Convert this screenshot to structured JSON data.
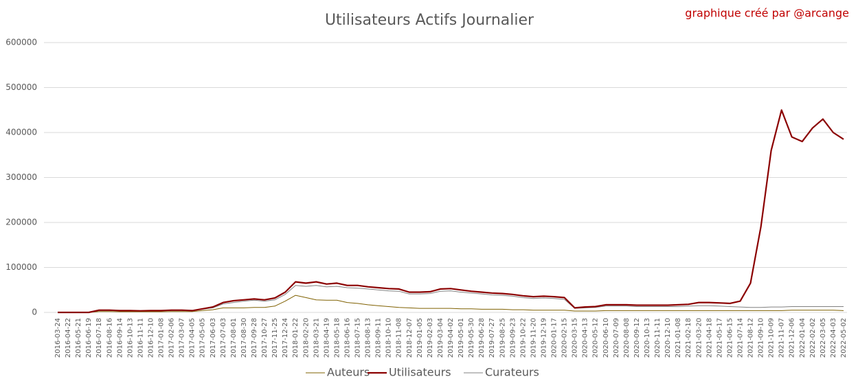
{
  "chart_data": {
    "type": "line",
    "title": "Utilisateurs Actifs Journalier",
    "annotation": "graphique créé par @arcange",
    "categories": [
      "2016-03-24",
      "2016-04-22",
      "2016-05-21",
      "2016-06-19",
      "2016-07-18",
      "2016-08-16",
      "2016-09-14",
      "2016-10-13",
      "2016-11-11",
      "2016-12-10",
      "2017-01-08",
      "2017-02-06",
      "2017-03-07",
      "2017-04-05",
      "2017-05-05",
      "2017-06-03",
      "2017-07-03",
      "2017-08-01",
      "2017-08-30",
      "2017-09-28",
      "2017-10-27",
      "2017-11-25",
      "2017-12-24",
      "2018-01-22",
      "2018-02-20",
      "2018-03-21",
      "2018-04-19",
      "2018-05-18",
      "2018-06-16",
      "2018-07-15",
      "2018-08-13",
      "2018-09-11",
      "2018-10-10",
      "2018-11-08",
      "2018-12-07",
      "2019-01-05",
      "2019-02-03",
      "2019-03-04",
      "2019-04-02",
      "2019-05-01",
      "2019-05-30",
      "2019-06-28",
      "2019-07-27",
      "2019-08-25",
      "2019-09-23",
      "2019-10-22",
      "2019-11-20",
      "2019-12-19",
      "2020-01-17",
      "2020-02-15",
      "2020-03-15",
      "2020-04-13",
      "2020-05-12",
      "2020-06-10",
      "2020-07-09",
      "2020-08-08",
      "2020-09-12",
      "2020-10-13",
      "2020-11-11",
      "2020-12-10",
      "2021-01-08",
      "2021-02-18",
      "2021-03-20",
      "2021-04-18",
      "2021-05-17",
      "2021-06-15",
      "2021-07-14",
      "2021-08-12",
      "2021-09-10",
      "2021-10-09",
      "2021-11-07",
      "2021-12-06",
      "2022-01-04",
      "2022-02-02",
      "2022-03-05",
      "2022-04-03",
      "2022-05-02"
    ],
    "series": [
      {
        "name": "Auteurs",
        "color": "#7f6000",
        "width": 1,
        "values": [
          0,
          0,
          0,
          0,
          2000,
          2000,
          1500,
          1500,
          1500,
          1500,
          1500,
          2000,
          2000,
          2000,
          4000,
          6000,
          10000,
          10000,
          10000,
          11000,
          11000,
          14000,
          25000,
          38000,
          33000,
          28000,
          27000,
          27000,
          22000,
          20000,
          17000,
          15000,
          13000,
          11000,
          10000,
          9000,
          9000,
          9000,
          9000,
          8000,
          8000,
          7000,
          7000,
          7000,
          6000,
          6000,
          5000,
          5000,
          5000,
          5000,
          3000,
          3000,
          3000,
          4000,
          4000,
          4000,
          4000,
          4000,
          4000,
          4000,
          4000,
          4000,
          4000,
          4000,
          4000,
          4000,
          4000,
          4000,
          4000,
          4000,
          4000,
          5000,
          5000,
          5000,
          5000,
          5000,
          4000
        ]
      },
      {
        "name": "Utilisateurs",
        "color": "#8b0000",
        "width": 2.2,
        "values": [
          0,
          0,
          0,
          0,
          5000,
          5000,
          4000,
          4000,
          3500,
          4000,
          4000,
          5000,
          5000,
          4000,
          8000,
          12000,
          22000,
          26000,
          28000,
          30000,
          28000,
          32000,
          45000,
          68000,
          65000,
          68000,
          63000,
          65000,
          60000,
          60000,
          57000,
          55000,
          53000,
          52000,
          45000,
          45000,
          46000,
          52000,
          53000,
          50000,
          47000,
          45000,
          43000,
          42000,
          40000,
          37000,
          35000,
          36000,
          35000,
          33000,
          10000,
          12000,
          13000,
          17000,
          17000,
          17000,
          16000,
          16000,
          16000,
          16000,
          17000,
          18000,
          22000,
          22000,
          21000,
          20000,
          25000,
          65000,
          190000,
          360000,
          450000,
          390000,
          380000,
          410000,
          430000,
          400000,
          385000
        ]
      },
      {
        "name": "Curateurs",
        "color": "#808080",
        "width": 1,
        "values": [
          0,
          0,
          0,
          0,
          4000,
          4000,
          3500,
          3500,
          3000,
          3500,
          3500,
          4000,
          4000,
          3500,
          7000,
          10000,
          19000,
          22000,
          25000,
          27000,
          25000,
          28000,
          40000,
          60000,
          58000,
          60000,
          57000,
          58000,
          55000,
          54000,
          52000,
          50000,
          48000,
          47000,
          41000,
          41000,
          42000,
          47000,
          48000,
          45000,
          43000,
          41000,
          39000,
          38000,
          36000,
          33000,
          31000,
          32000,
          31000,
          29000,
          9000,
          10000,
          11000,
          14000,
          14000,
          14000,
          13000,
          13000,
          13000,
          13000,
          13000,
          14000,
          15000,
          15000,
          14000,
          13000,
          12000,
          11000,
          11000,
          12000,
          12000,
          13000,
          13000,
          13000,
          13000,
          13000,
          13000
        ]
      }
    ],
    "ylim": [
      0,
      600000
    ],
    "yticks": [
      0,
      100000,
      200000,
      300000,
      400000,
      500000,
      600000
    ],
    "grid": true,
    "legend": "bottom"
  }
}
